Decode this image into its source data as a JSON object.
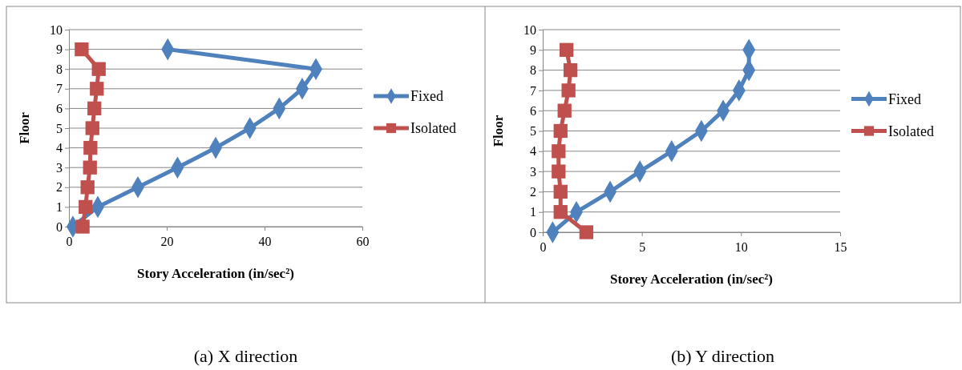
{
  "chart_data": [
    {
      "type": "line",
      "xlabel": "Story Acceleration (in/sec²)",
      "ylabel": "Floor",
      "xlim": [
        0,
        60
      ],
      "xticks": [
        0,
        20,
        40,
        60
      ],
      "ylim": [
        0,
        10
      ],
      "yticks": [
        0,
        1,
        2,
        3,
        4,
        5,
        6,
        7,
        8,
        9,
        10
      ],
      "grid": "y",
      "legend": "right",
      "annotations": [
        "(a) X direction"
      ],
      "series": [
        {
          "name": "Fixed",
          "color": "#4f81bd",
          "marker": "diamond",
          "x": [
            0.8,
            5.9,
            14.1,
            22.2,
            30.0,
            37.0,
            43.0,
            47.7,
            50.5,
            20.2
          ],
          "values": [
            0,
            1,
            2,
            3,
            4,
            5,
            6,
            7,
            8,
            9
          ]
        },
        {
          "name": "Isolated",
          "color": "#c0504d",
          "marker": "square",
          "x": [
            2.8,
            3.4,
            3.8,
            4.3,
            4.4,
            4.8,
            5.2,
            5.7,
            6.1,
            2.6
          ],
          "values": [
            0,
            1,
            2,
            3,
            4,
            5,
            6,
            7,
            8,
            9
          ]
        }
      ]
    },
    {
      "type": "line",
      "xlabel": "Storey Acceleration (in/sec²)",
      "ylabel": "Floor",
      "xlim": [
        0,
        15
      ],
      "xticks": [
        0,
        5,
        10,
        15
      ],
      "ylim": [
        0,
        10
      ],
      "yticks": [
        0,
        1,
        2,
        3,
        4,
        5,
        6,
        7,
        8,
        9,
        10
      ],
      "grid": "y",
      "legend": "right",
      "annotations": [
        "(b) Y direction"
      ],
      "series": [
        {
          "name": "Fixed",
          "color": "#4f81bd",
          "marker": "diamond",
          "x": [
            0.5,
            1.7,
            3.4,
            4.9,
            6.5,
            8.0,
            9.1,
            9.9,
            10.4,
            10.4
          ],
          "values": [
            0,
            1,
            2,
            3,
            4,
            5,
            6,
            7,
            8,
            9
          ]
        },
        {
          "name": "Isolated",
          "color": "#c0504d",
          "marker": "square",
          "x": [
            2.2,
            0.9,
            0.9,
            0.8,
            0.8,
            0.9,
            1.1,
            1.3,
            1.4,
            1.2
          ],
          "values": [
            0,
            1,
            2,
            3,
            4,
            5,
            6,
            7,
            8,
            9
          ]
        }
      ]
    }
  ]
}
